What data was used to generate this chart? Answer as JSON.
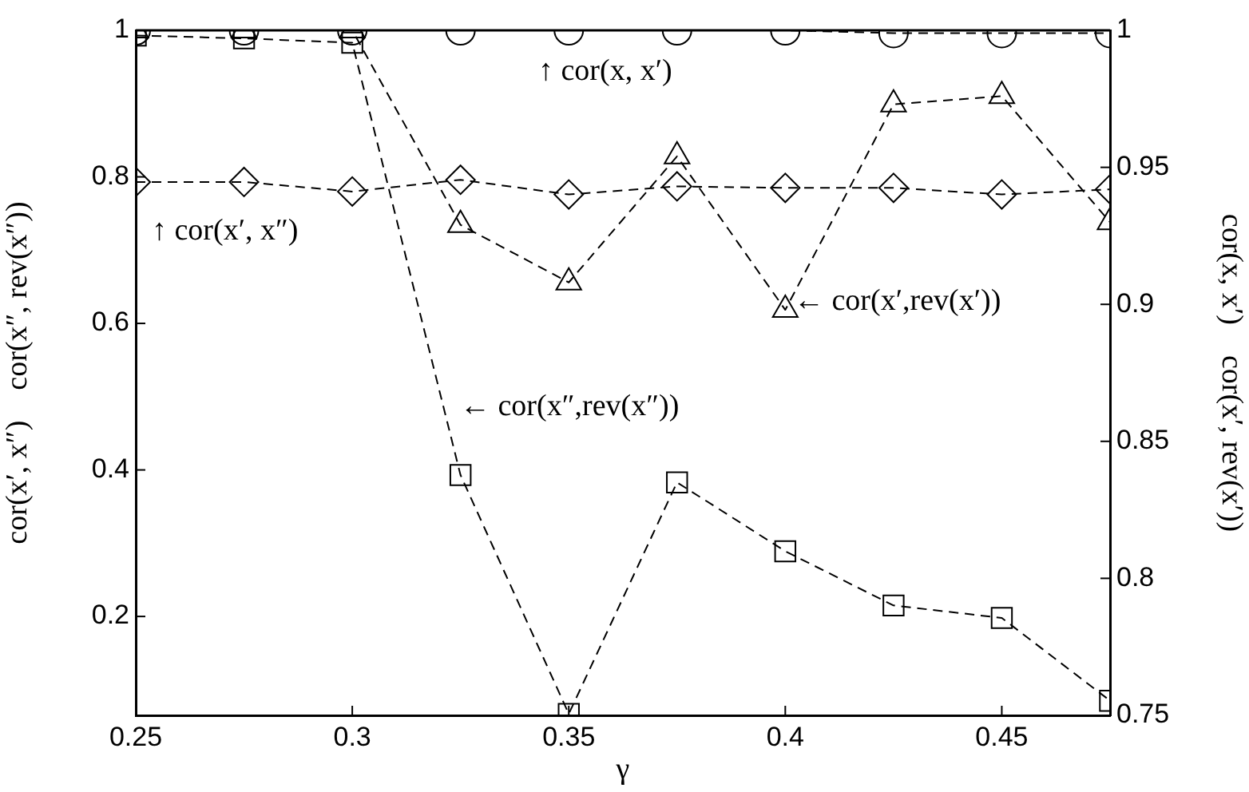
{
  "chart_data": {
    "type": "line",
    "xlabel": "γ",
    "ylabel": "cor(x′, x″)    cor(x″, rev(x″))",
    "y2label": "cor(x, x′)    cor(x′, rev(x′))",
    "x": [
      0.25,
      0.275,
      0.3,
      0.325,
      0.35,
      0.375,
      0.4,
      0.425,
      0.45,
      0.475
    ],
    "xlim": [
      0.25,
      0.475
    ],
    "xticks": [
      0.25,
      0.3,
      0.35,
      0.4,
      0.45
    ],
    "ylim": [
      0.065,
      1
    ],
    "yticks": [
      0.2,
      0.4,
      0.6,
      0.8,
      1
    ],
    "y2lim": [
      0.75,
      1
    ],
    "y2ticks": [
      0.75,
      0.8,
      0.85,
      0.9,
      0.95,
      1
    ],
    "grid": false,
    "legend": false,
    "line_style": "dashed",
    "series": [
      {
        "color": "#000000",
        "marker": "circle",
        "axis": "y2",
        "values": [
          1,
          1,
          1,
          1,
          1,
          1,
          1,
          0.999,
          0.999,
          0.999
        ]
      },
      {
        "color": "#000000",
        "marker": "triangle",
        "axis": "y2",
        "values": [
          1,
          1,
          1,
          0.929,
          0.908,
          0.954,
          0.898,
          0.973,
          0.976,
          0.93
        ]
      },
      {
        "color": "#000000",
        "marker": "diamond",
        "values": [
          0.793,
          0.793,
          0.78,
          0.796,
          0.776,
          0.787,
          0.785,
          0.785,
          0.776,
          0.783
        ]
      },
      {
        "color": "#000000",
        "marker": "square",
        "values": [
          0.993,
          0.989,
          0.983,
          0.393,
          0.067,
          0.383,
          0.289,
          0.215,
          0.198,
          0.085
        ]
      }
    ],
    "annotations": [
      "↑ cor(x, x′)",
      "↑ cor(x′, x″)",
      "← cor(x′,rev(x′))",
      "← cor(x″,rev(x″))"
    ]
  }
}
